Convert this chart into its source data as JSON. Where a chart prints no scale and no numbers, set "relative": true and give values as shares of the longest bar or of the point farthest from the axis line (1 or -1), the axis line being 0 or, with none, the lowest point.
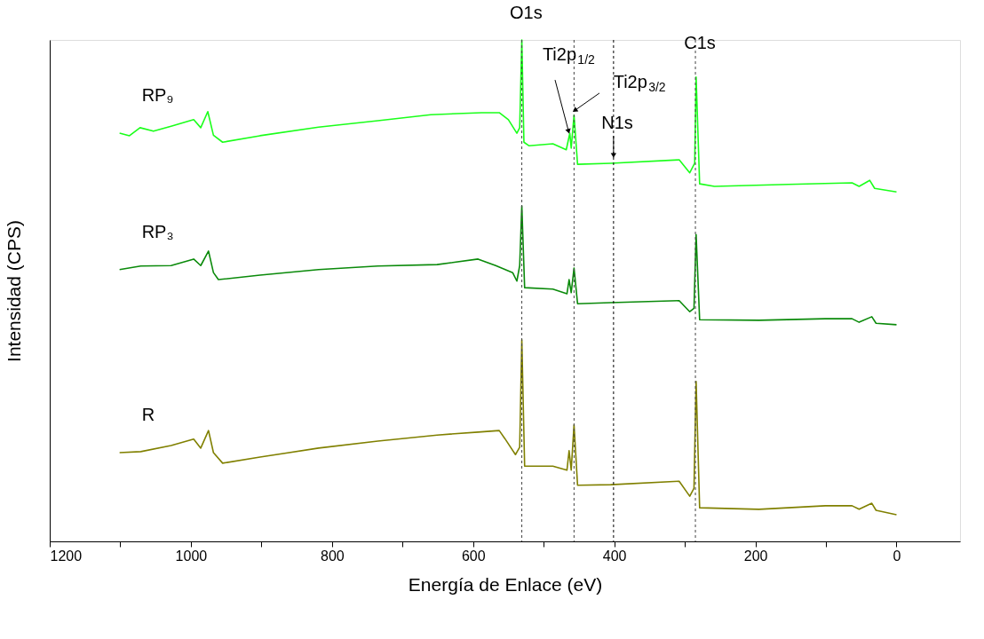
{
  "chart_data": {
    "type": "line",
    "relative": true,
    "xlabel": "Energía de Enlace (eV)",
    "ylabel": "Intensidad (CPS)",
    "xlim": [
      1200,
      -90
    ],
    "xticks": [
      1200,
      {
        "value": 1100,
        "label": null
      },
      1000,
      {
        "value": 900,
        "label": null
      },
      800,
      {
        "value": 700,
        "label": null
      },
      600,
      {
        "value": 500,
        "label": null
      },
      400,
      {
        "value": 300,
        "label": null
      },
      200,
      {
        "value": 100,
        "label": null
      },
      0
    ],
    "series": [
      {
        "name": "RP₉",
        "color": "#1aff1a",
        "x": [
          1101,
          1087,
          1072,
          1053,
          1028,
          996,
          986,
          976,
          968,
          955,
          902,
          819,
          735,
          660,
          588,
          563,
          550,
          538,
          534,
          531,
          528,
          521,
          487,
          468,
          463,
          461,
          457,
          452,
          405,
          308,
          293,
          286,
          284,
          279,
          258,
          153,
          63,
          53,
          38,
          31,
          0
        ],
        "values": [
          0.814,
          0.809,
          0.825,
          0.818,
          0.828,
          0.841,
          0.825,
          0.857,
          0.81,
          0.796,
          0.809,
          0.826,
          0.839,
          0.851,
          0.855,
          0.855,
          0.841,
          0.814,
          0.825,
          1.0,
          0.796,
          0.789,
          0.793,
          0.781,
          0.814,
          0.784,
          0.85,
          0.752,
          0.754,
          0.761,
          0.735,
          0.754,
          0.926,
          0.713,
          0.708,
          0.712,
          0.715,
          0.708,
          0.72,
          0.704,
          0.697
        ]
      },
      {
        "name": "RP₃",
        "color": "#0a8a0a",
        "x": [
          1101,
          1071,
          1028,
          996,
          986,
          975,
          968,
          961,
          902,
          819,
          735,
          651,
          593,
          568,
          544,
          538,
          534,
          531,
          527,
          487,
          467,
          464,
          461,
          457,
          452,
          405,
          308,
          293,
          287,
          284,
          279,
          195,
          101,
          63,
          53,
          35,
          29,
          0
        ],
        "values": [
          0.542,
          0.549,
          0.55,
          0.563,
          0.55,
          0.579,
          0.536,
          0.522,
          0.531,
          0.542,
          0.549,
          0.552,
          0.563,
          0.55,
          0.536,
          0.519,
          0.55,
          0.669,
          0.506,
          0.503,
          0.494,
          0.522,
          0.496,
          0.545,
          0.474,
          0.476,
          0.48,
          0.458,
          0.465,
          0.612,
          0.442,
          0.441,
          0.444,
          0.444,
          0.437,
          0.448,
          0.435,
          0.432
        ]
      },
      {
        "name": "R",
        "color": "#808000",
        "x": [
          1101,
          1071,
          1028,
          996,
          986,
          975,
          968,
          955,
          902,
          819,
          735,
          651,
          593,
          563,
          555,
          540,
          534,
          531,
          527,
          487,
          467,
          464,
          461,
          457,
          452,
          405,
          308,
          293,
          287,
          284,
          279,
          195,
          101,
          63,
          53,
          35,
          29,
          0
        ],
        "values": [
          0.177,
          0.179,
          0.191,
          0.204,
          0.186,
          0.221,
          0.177,
          0.156,
          0.168,
          0.186,
          0.2,
          0.212,
          0.218,
          0.221,
          0.205,
          0.173,
          0.188,
          0.402,
          0.15,
          0.15,
          0.142,
          0.181,
          0.142,
          0.232,
          0.112,
          0.113,
          0.12,
          0.09,
          0.106,
          0.319,
          0.067,
          0.064,
          0.071,
          0.071,
          0.064,
          0.076,
          0.062,
          0.053
        ]
      }
    ],
    "ref_lines": [
      {
        "axis": "x",
        "value": 531,
        "color": "#444444",
        "line_style": "dashed"
      },
      {
        "axis": "x",
        "value": 457,
        "color": "#444444",
        "line_style": "dashed"
      },
      {
        "axis": "x",
        "value": 401,
        "color": "#000000",
        "line_style": "dashed"
      },
      {
        "axis": "x",
        "value": 285,
        "color": "#444444",
        "line_style": "dashed"
      }
    ],
    "annotations": [
      {
        "text": "O1s",
        "x": 531,
        "y": 1.0
      },
      {
        "text": "Ti2p$_{1/2}$",
        "x": 465,
        "y": 0.814
      },
      {
        "text": "Ti2p$_{3/2}$",
        "x": 455,
        "y": 0.855
      },
      {
        "text": "N1s",
        "x": 401,
        "y": 0.766
      },
      {
        "text": "C1s",
        "x": 284,
        "y": 0.926
      }
    ]
  }
}
